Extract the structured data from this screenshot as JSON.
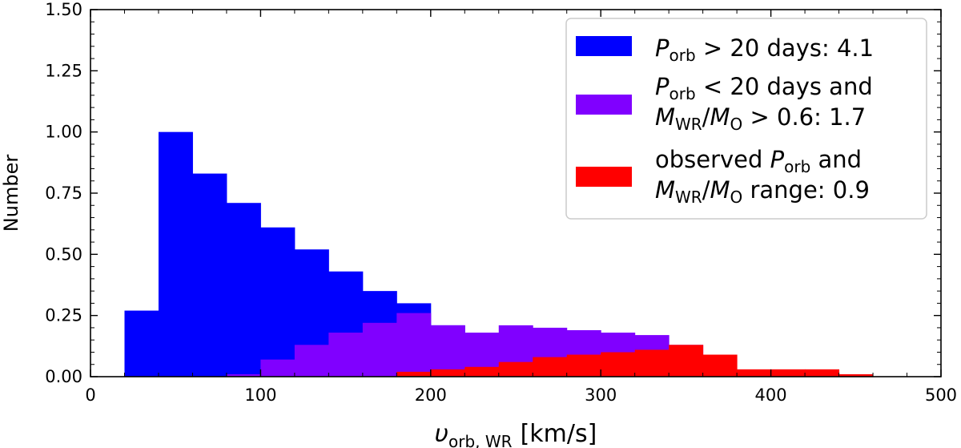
{
  "chart_data": {
    "type": "bar",
    "subtype": "histogram-overlaid",
    "xlabel": "υ_orb, WR [km/s]",
    "xlabel_parts": {
      "symbol": "υ",
      "subscript": "orb, WR",
      "unit": "[km/s]"
    },
    "ylabel": "Number",
    "xlim": [
      0,
      500
    ],
    "ylim": [
      0,
      1.5
    ],
    "bin_width": 20,
    "xticks": [
      0,
      100,
      200,
      300,
      400,
      500
    ],
    "xtick_labels": [
      "0",
      "100",
      "200",
      "300",
      "400",
      "500"
    ],
    "yticks": [
      0,
      0.25,
      0.5,
      0.75,
      1.0,
      1.25,
      1.5
    ],
    "ytick_labels": [
      "0.00",
      "0.25",
      "0.50",
      "0.75",
      "1.00",
      "1.25",
      "1.50"
    ],
    "grid": false,
    "legend_position": "top-right",
    "series": [
      {
        "name": "P_orb > 20 days: 4.1",
        "color": "#0000ff",
        "bin_starts": [
          20,
          40,
          60,
          80,
          100,
          120,
          140,
          160,
          180,
          200,
          220
        ],
        "values": [
          0.27,
          1.0,
          0.83,
          0.71,
          0.61,
          0.52,
          0.43,
          0.35,
          0.3,
          0.21,
          0.03
        ]
      },
      {
        "name": "P_orb < 20 days and M_WR/M_O > 0.6: 1.7",
        "color": "#8000ff",
        "bin_starts": [
          80,
          100,
          120,
          140,
          160,
          180,
          200,
          220,
          240,
          260,
          280,
          300,
          320,
          340
        ],
        "values": [
          0.01,
          0.07,
          0.13,
          0.18,
          0.22,
          0.26,
          0.21,
          0.18,
          0.21,
          0.2,
          0.19,
          0.18,
          0.17,
          0.13
        ]
      },
      {
        "name": "observed P_orb and M_WR/M_O range: 0.9",
        "color": "#ff0000",
        "bin_starts": [
          180,
          200,
          220,
          240,
          260,
          280,
          300,
          320,
          340,
          360,
          380,
          400,
          420,
          440
        ],
        "values": [
          0.02,
          0.03,
          0.04,
          0.06,
          0.08,
          0.09,
          0.1,
          0.11,
          0.13,
          0.09,
          0.03,
          0.03,
          0.03,
          0.01
        ]
      }
    ]
  },
  "legend": {
    "entry1": {
      "sym": "P",
      "sub": "orb",
      "rest": " > 20 days: 4.1"
    },
    "entry2": {
      "line1": {
        "sym": "P",
        "sub": "orb",
        "rest": " < 20 days and"
      },
      "line2": {
        "sym1": "M",
        "sub1": "WR",
        "slash": "/",
        "sym2": "M",
        "sub2": "O",
        "rest": " > 0.6: 1.7"
      }
    },
    "entry3": {
      "line1": {
        "pre": "observed ",
        "sym": "P",
        "sub": "orb",
        "rest": " and"
      },
      "line2": {
        "sym1": "M",
        "sub1": "WR",
        "slash": "/",
        "sym2": "M",
        "sub2": "O",
        "rest": " range: 0.9"
      }
    }
  }
}
